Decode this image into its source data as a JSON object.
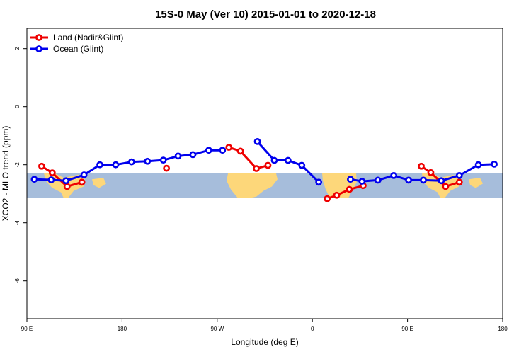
{
  "chart_data": {
    "type": "line",
    "title": "15S-0 May (Ver 10)   2015-01-01 to 2020-12-18",
    "xlabel": "Longitude (deg E)",
    "ylabel": "XCO2 - MLO trend (ppm)",
    "xlim": [
      90,
      540
    ],
    "ylim": [
      -7.3,
      2.7
    ],
    "x_ticks": [
      {
        "value": 90,
        "label": "90 E"
      },
      {
        "value": 180,
        "label": "180"
      },
      {
        "value": 270,
        "label": "90 W"
      },
      {
        "value": 360,
        "label": "0"
      },
      {
        "value": 450,
        "label": "90 E"
      },
      {
        "value": 540,
        "label": "180"
      }
    ],
    "y_ticks": [
      {
        "value": 2,
        "label": "2"
      },
      {
        "value": 0,
        "label": "0"
      },
      {
        "value": -2,
        "label": "-2"
      },
      {
        "value": -4,
        "label": "-4"
      },
      {
        "value": -6,
        "label": "-6"
      }
    ],
    "latitude_band": {
      "ymin": -3.15,
      "ymax": -2.3,
      "ocean_color": "#a6bddb",
      "land_color": "#fdd77a"
    },
    "legend": {
      "position": "top-left",
      "entries": [
        "Land (Nadir&Glint)",
        "Ocean (Glint)"
      ]
    },
    "series": [
      {
        "name": "Land (Nadir&Glint)",
        "color": "#ee0000",
        "segments": [
          [
            [
              104,
              -2.05
            ],
            [
              114,
              -2.28
            ],
            [
              128,
              -2.75
            ],
            [
              142,
              -2.6
            ]
          ],
          [
            [
              222,
              -2.12
            ]
          ],
          [
            [
              281,
              -1.4
            ],
            [
              292,
              -1.53
            ],
            [
              307,
              -2.13
            ],
            [
              318,
              -2.02
            ]
          ],
          [
            [
              374,
              -3.17
            ],
            [
              383,
              -3.05
            ],
            [
              395,
              -2.85
            ],
            [
              408,
              -2.72
            ]
          ],
          [
            [
              463,
              -2.05
            ],
            [
              472,
              -2.27
            ],
            [
              486,
              -2.75
            ],
            [
              499,
              -2.6
            ]
          ]
        ]
      },
      {
        "name": "Ocean (Glint)",
        "color": "#0000ee",
        "segments": [
          [
            [
              97,
              -2.5
            ],
            [
              113,
              -2.52
            ],
            [
              127,
              -2.55
            ],
            [
              144,
              -2.35
            ],
            [
              159,
              -2.0
            ],
            [
              174,
              -2.0
            ],
            [
              189,
              -1.9
            ],
            [
              204,
              -1.88
            ],
            [
              219,
              -1.84
            ],
            [
              233,
              -1.7
            ],
            [
              247,
              -1.65
            ],
            [
              262,
              -1.5
            ],
            [
              275,
              -1.5
            ]
          ],
          [
            [
              308,
              -1.2
            ],
            [
              324,
              -1.85
            ],
            [
              337,
              -1.85
            ],
            [
              350,
              -2.02
            ],
            [
              366,
              -2.6
            ]
          ],
          [
            [
              396,
              -2.5
            ],
            [
              407,
              -2.57
            ],
            [
              422,
              -2.53
            ],
            [
              437,
              -2.37
            ],
            [
              451,
              -2.53
            ],
            [
              465,
              -2.53
            ],
            [
              482,
              -2.55
            ],
            [
              499,
              -2.37
            ],
            [
              517,
              -2.0
            ],
            [
              532,
              -1.98
            ]
          ]
        ]
      }
    ]
  }
}
